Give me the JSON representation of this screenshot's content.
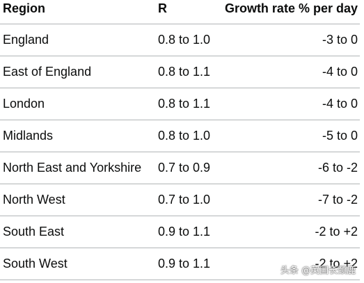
{
  "table": {
    "headers": {
      "region": "Region",
      "r": "R",
      "growth": "Growth rate % per day"
    },
    "rows": [
      {
        "region": "England",
        "r": "0.8 to 1.0",
        "growth": "-3 to 0"
      },
      {
        "region": "East of England",
        "r": "0.8 to 1.1",
        "growth": "-4 to 0"
      },
      {
        "region": "London",
        "r": "0.8 to 1.1",
        "growth": "-4 to 0"
      },
      {
        "region": "Midlands",
        "r": "0.8 to 1.0",
        "growth": "-5 to 0"
      },
      {
        "region": "North East and Yorkshire",
        "r": "0.7 to 0.9",
        "growth": "-6 to -2"
      },
      {
        "region": "North West",
        "r": "0.7 to 1.0",
        "growth": "-7 to -2"
      },
      {
        "region": "South East",
        "r": "0.9 to 1.1",
        "growth": "-2 to +2"
      },
      {
        "region": "South West",
        "r": "0.9 to 1.1",
        "growth": "-2 to +2"
      }
    ]
  },
  "watermark": "头条 @英国长颈鹿"
}
